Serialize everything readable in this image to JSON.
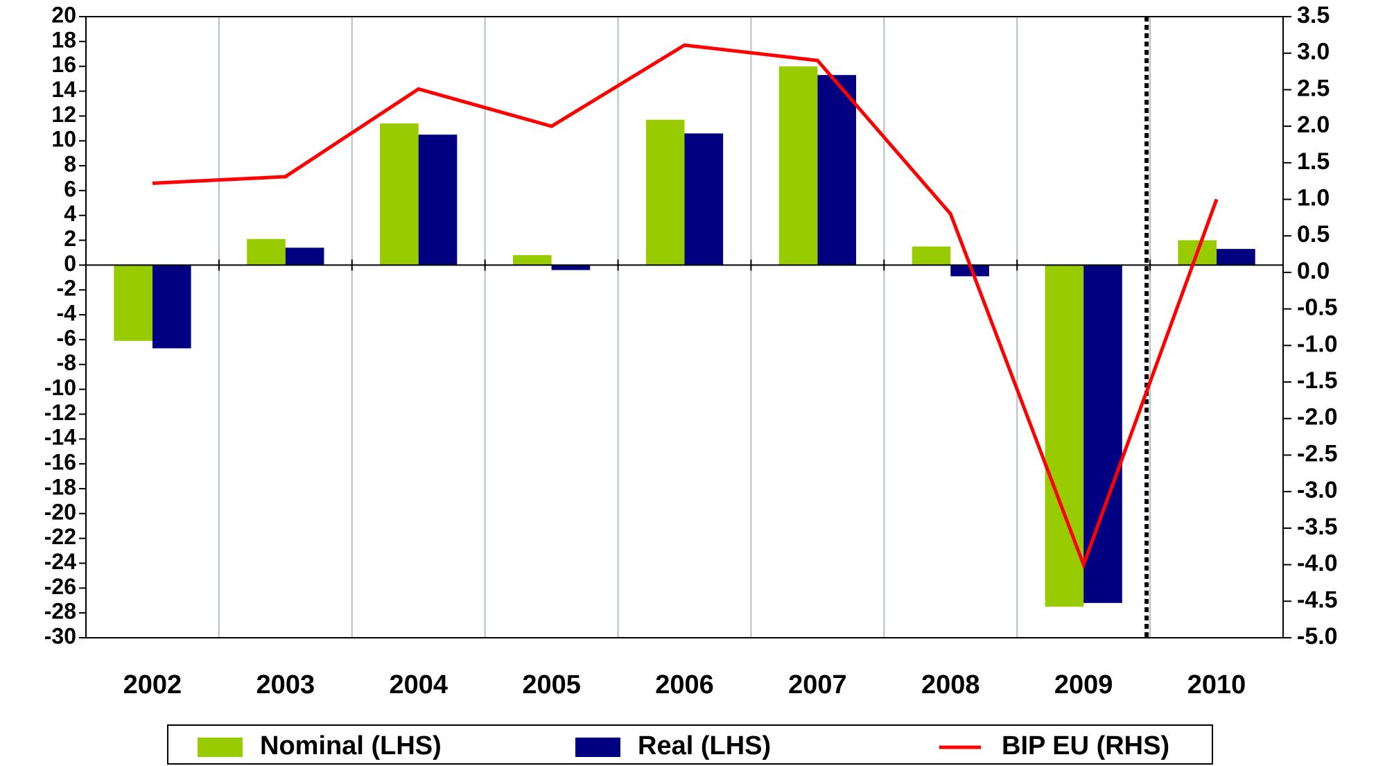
{
  "chart_data": {
    "type": "bar",
    "categories": [
      "2002",
      "2003",
      "2004",
      "2005",
      "2006",
      "2007",
      "2008",
      "2009",
      "2010"
    ],
    "series": [
      {
        "name": "Nominal (LHS)",
        "color": "#99cc00",
        "values": [
          -6.1,
          2.1,
          11.4,
          0.8,
          11.7,
          16.0,
          1.5,
          -27.5,
          2.0
        ]
      },
      {
        "name": "Real (LHS)",
        "color": "#000080",
        "values": [
          -6.7,
          1.4,
          10.5,
          -0.4,
          10.6,
          15.3,
          -0.9,
          -27.2,
          1.3
        ]
      },
      {
        "name": "BIP EU (RHS)",
        "color": "#ff0000",
        "type": "line",
        "axis": "y2",
        "values": [
          1.22,
          1.31,
          2.51,
          2.0,
          3.11,
          2.9,
          0.8,
          -4.0,
          1.0
        ]
      }
    ],
    "ylim": [
      -30,
      20
    ],
    "yticks": [
      20,
      18,
      16,
      14,
      12,
      10,
      8,
      6,
      4,
      2,
      0,
      -2,
      -4,
      -6,
      -8,
      -10,
      -12,
      -14,
      -16,
      -18,
      -20,
      -22,
      -24,
      -26,
      -28,
      -30
    ],
    "y2lim": [
      -5,
      3.5
    ],
    "y2ticks": [
      3.5,
      {
        "value": 3,
        "label": "3.0"
      },
      2.5,
      {
        "value": 2,
        "label": "2.0"
      },
      1.5,
      {
        "value": 1,
        "label": "1.0"
      },
      0.5,
      {
        "value": 0,
        "label": "0.0"
      },
      -0.5,
      {
        "value": -1,
        "label": "-1.0"
      },
      -1.5,
      {
        "value": -2,
        "label": "-2.0"
      },
      -2.5,
      {
        "value": -3,
        "label": "-3.0"
      },
      -3.5,
      {
        "value": -4,
        "label": "-4.0"
      },
      -4.5,
      {
        "value": -5,
        "label": "-5.0"
      }
    ],
    "grid": true
  }
}
